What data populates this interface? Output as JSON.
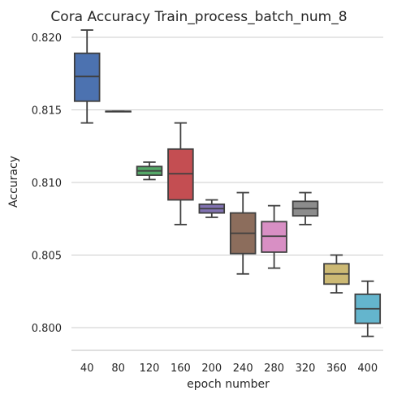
{
  "chart_data": {
    "type": "box",
    "title": "Cora Accuracy Train_process_batch_num_8",
    "xlabel": "epoch number",
    "ylabel": "Accuracy",
    "ylim": [
      0.7985,
      0.821
    ],
    "yticks": [
      "0.800",
      "0.805",
      "0.810",
      "0.815",
      "0.820"
    ],
    "grid": "horizontal",
    "categories": [
      "40",
      "80",
      "120",
      "160",
      "200",
      "240",
      "280",
      "320",
      "360",
      "400"
    ],
    "colors": [
      "#4c72b0",
      "#4c72b0",
      "#55a868",
      "#c44e52",
      "#8172b2",
      "#8c6d5c",
      "#d88fc4",
      "#8c8c8c",
      "#ccb974",
      "#64b5cd"
    ],
    "boxes": [
      {
        "whisker_low": 0.8141,
        "q1": 0.8156,
        "median": 0.8173,
        "q3": 0.8189,
        "whisker_high": 0.8205
      },
      {
        "whisker_low": 0.8149,
        "q1": 0.8149,
        "median": 0.8149,
        "q3": 0.8149,
        "whisker_high": 0.8149
      },
      {
        "whisker_low": 0.8102,
        "q1": 0.8105,
        "median": 0.8108,
        "q3": 0.8111,
        "whisker_high": 0.8114
      },
      {
        "whisker_low": 0.8071,
        "q1": 0.8088,
        "median": 0.8106,
        "q3": 0.8123,
        "whisker_high": 0.8141
      },
      {
        "whisker_low": 0.8076,
        "q1": 0.8079,
        "median": 0.8082,
        "q3": 0.8085,
        "whisker_high": 0.8088
      },
      {
        "whisker_low": 0.8037,
        "q1": 0.8051,
        "median": 0.8065,
        "q3": 0.8079,
        "whisker_high": 0.8093
      },
      {
        "whisker_low": 0.8041,
        "q1": 0.8052,
        "median": 0.8063,
        "q3": 0.8073,
        "whisker_high": 0.8084
      },
      {
        "whisker_low": 0.8071,
        "q1": 0.8077,
        "median": 0.8082,
        "q3": 0.8087,
        "whisker_high": 0.8093
      },
      {
        "whisker_low": 0.8024,
        "q1": 0.803,
        "median": 0.8037,
        "q3": 0.8044,
        "whisker_high": 0.805
      },
      {
        "whisker_low": 0.7994,
        "q1": 0.8003,
        "median": 0.8013,
        "q3": 0.8023,
        "whisker_high": 0.8032
      }
    ]
  }
}
